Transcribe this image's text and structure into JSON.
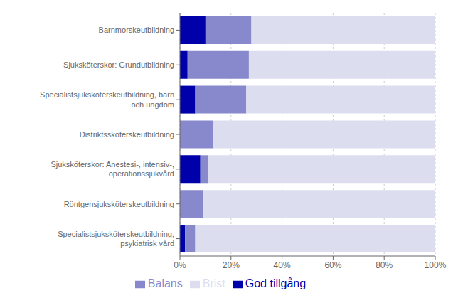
{
  "chart_data": {
    "type": "bar",
    "orientation": "horizontal",
    "stacked": true,
    "categories": [
      "Barnmorskeutbildning",
      "Sjuksköterskor: Grundutbildning",
      "Specialistsjuksköterskeutbildning, barn\noch ungdom",
      "Distriktssköterskeutbildning",
      "Sjuksköterskor: Anestesi-, intensiv-,\noperationssjukvård",
      "Röntgensjuksköterskeutbildning",
      "Specialistsjuksköterskeutbildning,\npsykiatrisk vård"
    ],
    "series": [
      {
        "name": "God tillgång",
        "color": "#0000AA",
        "values": [
          10,
          3,
          6,
          0,
          8,
          0,
          2
        ]
      },
      {
        "name": "Balans",
        "color": "#8888CC",
        "values": [
          18,
          24,
          20,
          13,
          3,
          9,
          4
        ]
      },
      {
        "name": "Brist",
        "color": "#DDDDF0",
        "values": [
          72,
          73,
          74,
          87,
          89,
          91,
          94
        ]
      }
    ],
    "xlim": [
      0,
      100
    ],
    "xticks": [
      {
        "value": 0,
        "label": "0%"
      },
      {
        "value": 20,
        "label": "20%"
      },
      {
        "value": 40,
        "label": "40%"
      },
      {
        "value": 60,
        "label": "60%"
      },
      {
        "value": 80,
        "label": "80%"
      },
      {
        "value": 100,
        "label": "100%"
      }
    ],
    "grid": true,
    "legend": "bottom"
  }
}
